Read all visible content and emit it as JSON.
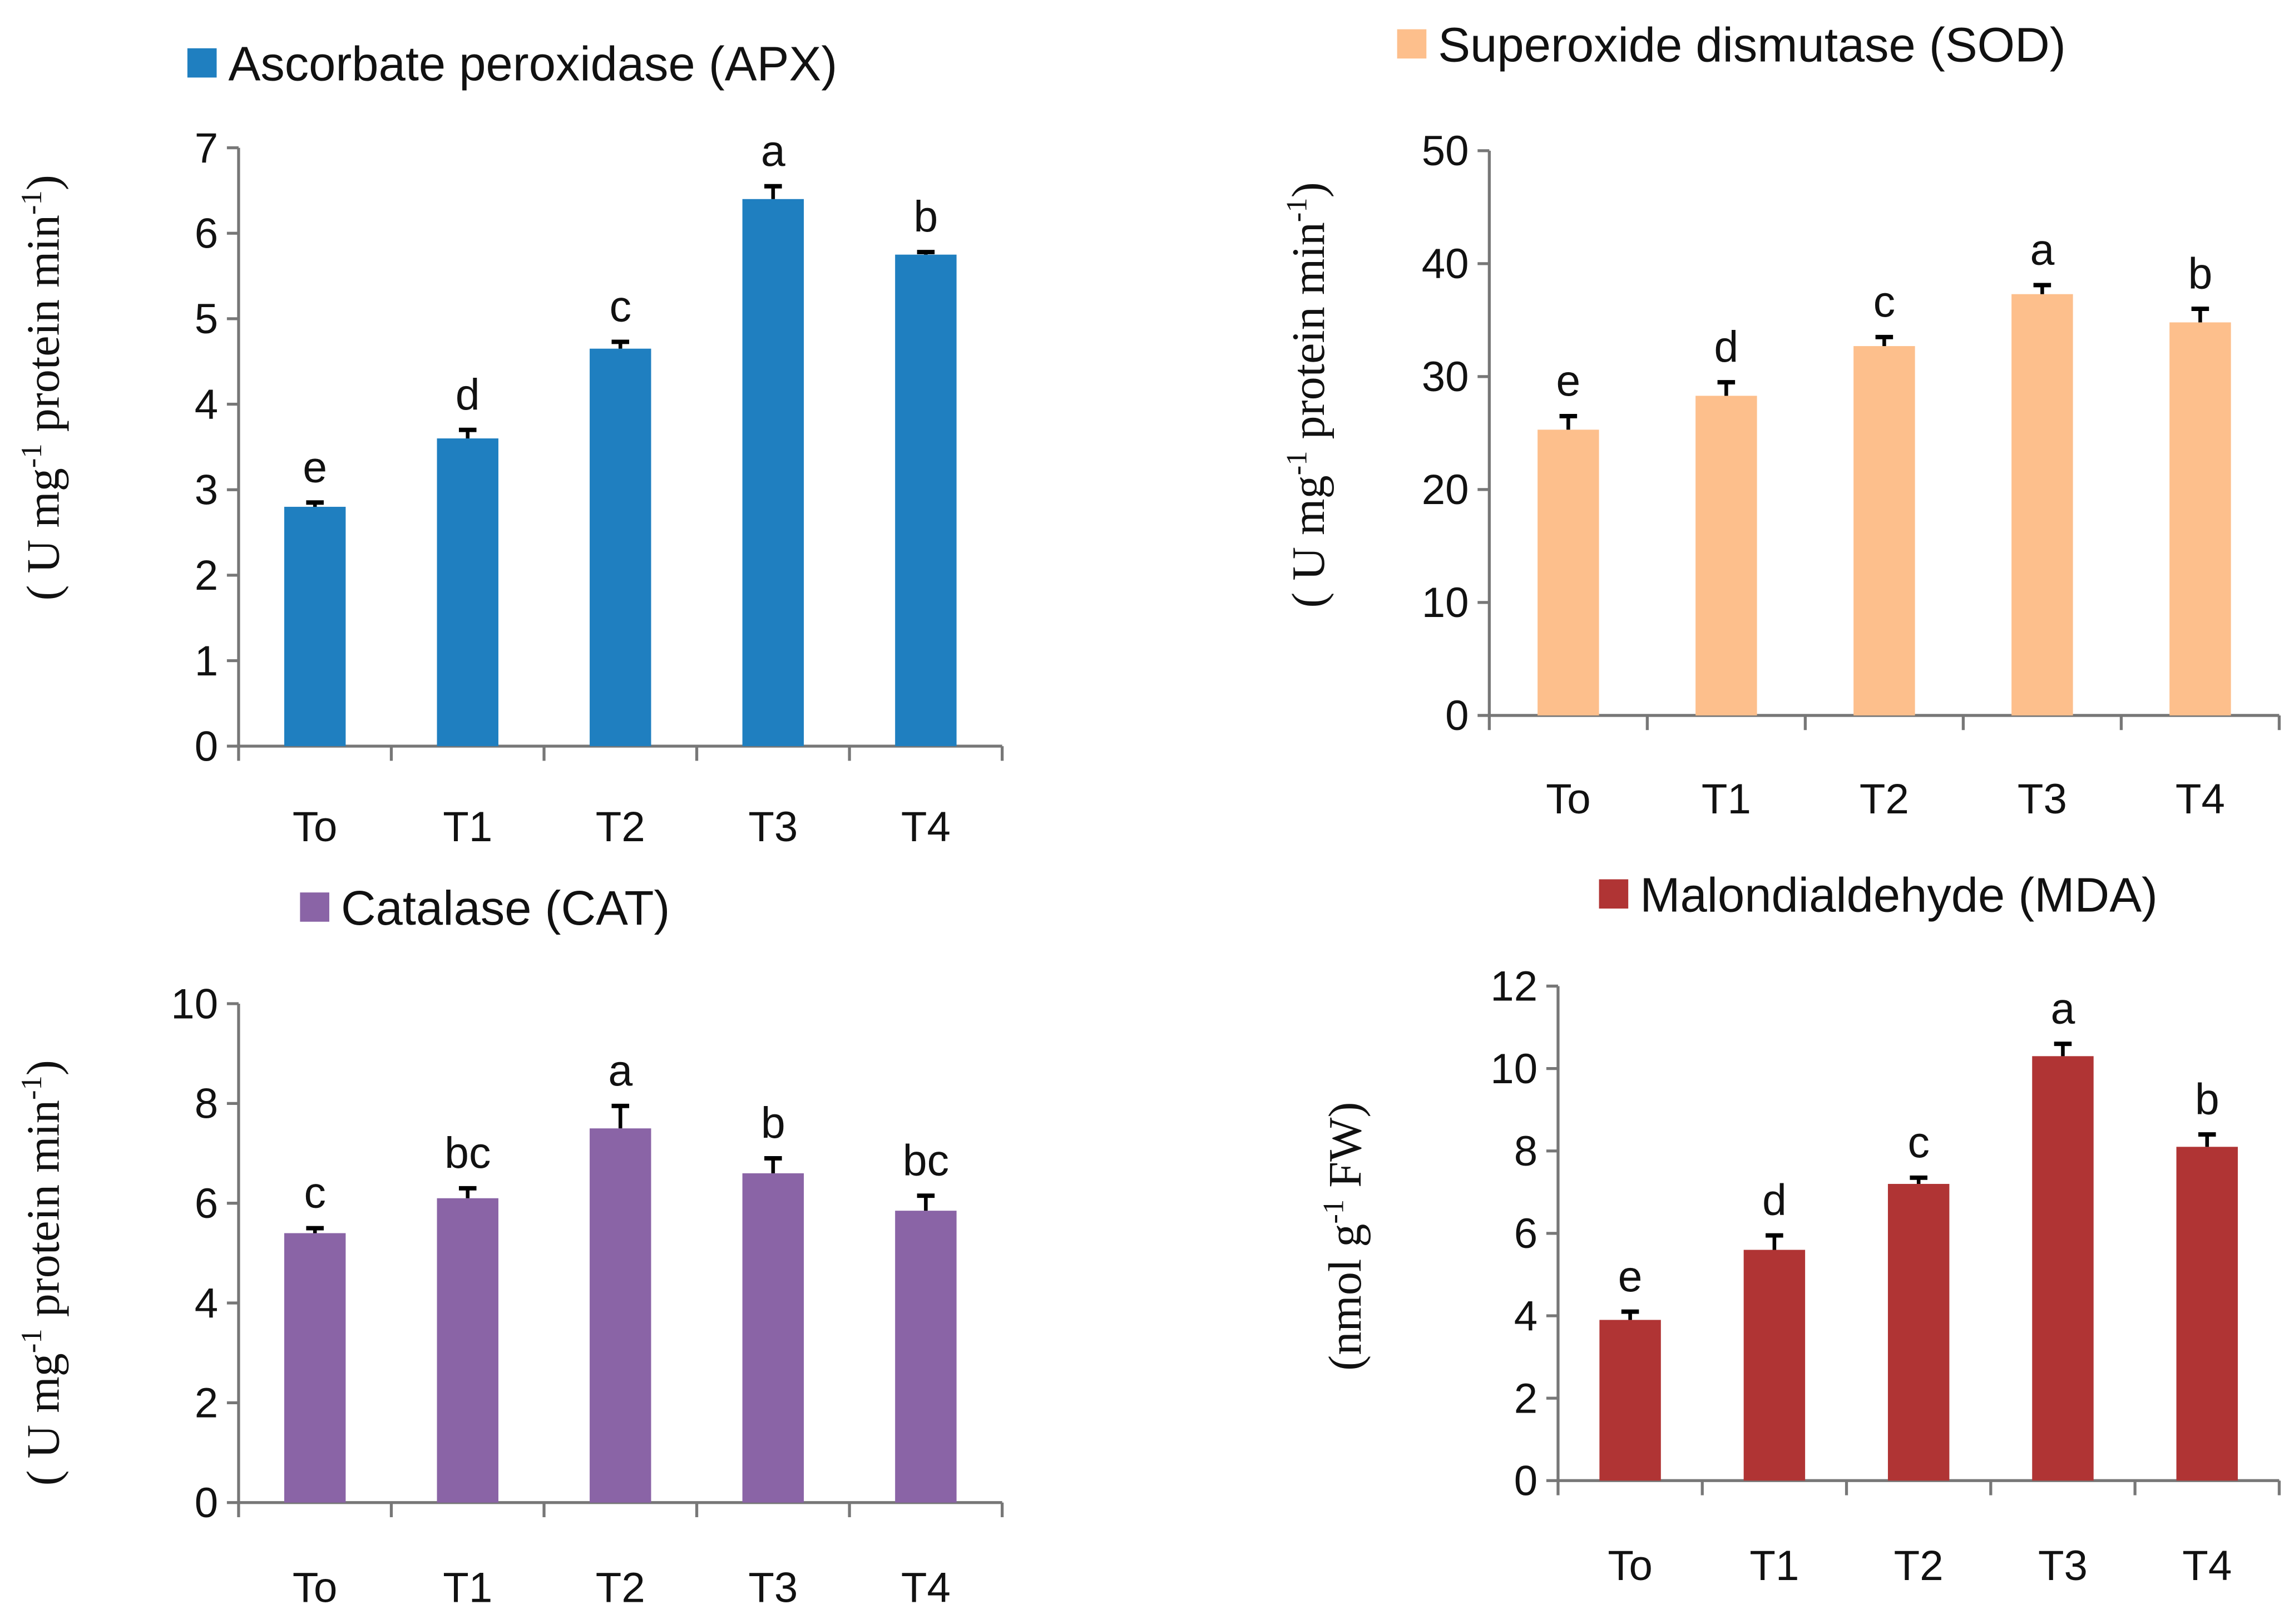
{
  "chart_data": [
    {
      "type": "bar",
      "id": "apx",
      "title": "Ascorbate peroxidase (APX)",
      "ylabel_parts": [
        "( U mg",
        "-1",
        " protein min",
        "-1",
        ")"
      ],
      "xlabel": "",
      "categories": [
        "To",
        "T1",
        "T2",
        "T3",
        "T4"
      ],
      "values": [
        2.8,
        3.6,
        4.65,
        6.4,
        5.75
      ],
      "errors": [
        0.05,
        0.1,
        0.08,
        0.15,
        0.03
      ],
      "significance": [
        "e",
        "d",
        "c",
        "a",
        "b"
      ],
      "ylim": [
        0,
        7
      ],
      "yticks": [
        0,
        1,
        2,
        3,
        4,
        5,
        6,
        7
      ],
      "color": "#1f7fc0",
      "legend": "top"
    },
    {
      "type": "bar",
      "id": "sod",
      "title": "Superoxide dismutase (SOD)",
      "ylabel_parts": [
        "( U mg",
        "-1",
        " protein min",
        "-1",
        ")"
      ],
      "xlabel": "",
      "categories": [
        "To",
        "T1",
        "T2",
        "T3",
        "T4"
      ],
      "values": [
        25.3,
        28.3,
        32.7,
        37.3,
        34.8
      ],
      "errors": [
        1.2,
        1.2,
        0.8,
        0.8,
        1.2
      ],
      "significance": [
        "e",
        "d",
        "c",
        "a",
        "b"
      ],
      "ylim": [
        0,
        50
      ],
      "yticks": [
        0,
        10,
        20,
        30,
        40,
        50
      ],
      "color": "#fdbf8c",
      "legend": "top"
    },
    {
      "type": "bar",
      "id": "cat",
      "title": "Catalase (CAT)",
      "ylabel_parts": [
        "( U mg",
        "-1",
        " protein min",
        "-1",
        ")"
      ],
      "xlabel": "",
      "categories": [
        "To",
        "T1",
        "T2",
        "T3",
        "T4"
      ],
      "values": [
        5.4,
        6.1,
        7.5,
        6.6,
        5.85
      ],
      "errors": [
        0.1,
        0.2,
        0.45,
        0.3,
        0.3
      ],
      "significance": [
        "c",
        "bc",
        "a",
        "b",
        "bc"
      ],
      "ylim": [
        0,
        10
      ],
      "yticks": [
        0,
        2,
        4,
        6,
        8,
        10
      ],
      "color": "#8a64a6",
      "legend": "top"
    },
    {
      "type": "bar",
      "id": "mda",
      "title": "Malondialdehyde (MDA)",
      "ylabel_parts": [
        "(nmol g",
        "-1",
        " FW)",
        "",
        ""
      ],
      "xlabel": "",
      "categories": [
        "To",
        "T1",
        "T2",
        "T3",
        "T4"
      ],
      "values": [
        3.9,
        5.6,
        7.2,
        10.3,
        8.1
      ],
      "errors": [
        0.2,
        0.35,
        0.15,
        0.3,
        0.3
      ],
      "significance": [
        "e",
        "d",
        "c",
        "a",
        "b"
      ],
      "ylim": [
        0,
        12
      ],
      "yticks": [
        0,
        2,
        4,
        6,
        8,
        10,
        12
      ],
      "color": "#b03434",
      "legend": "top"
    }
  ]
}
